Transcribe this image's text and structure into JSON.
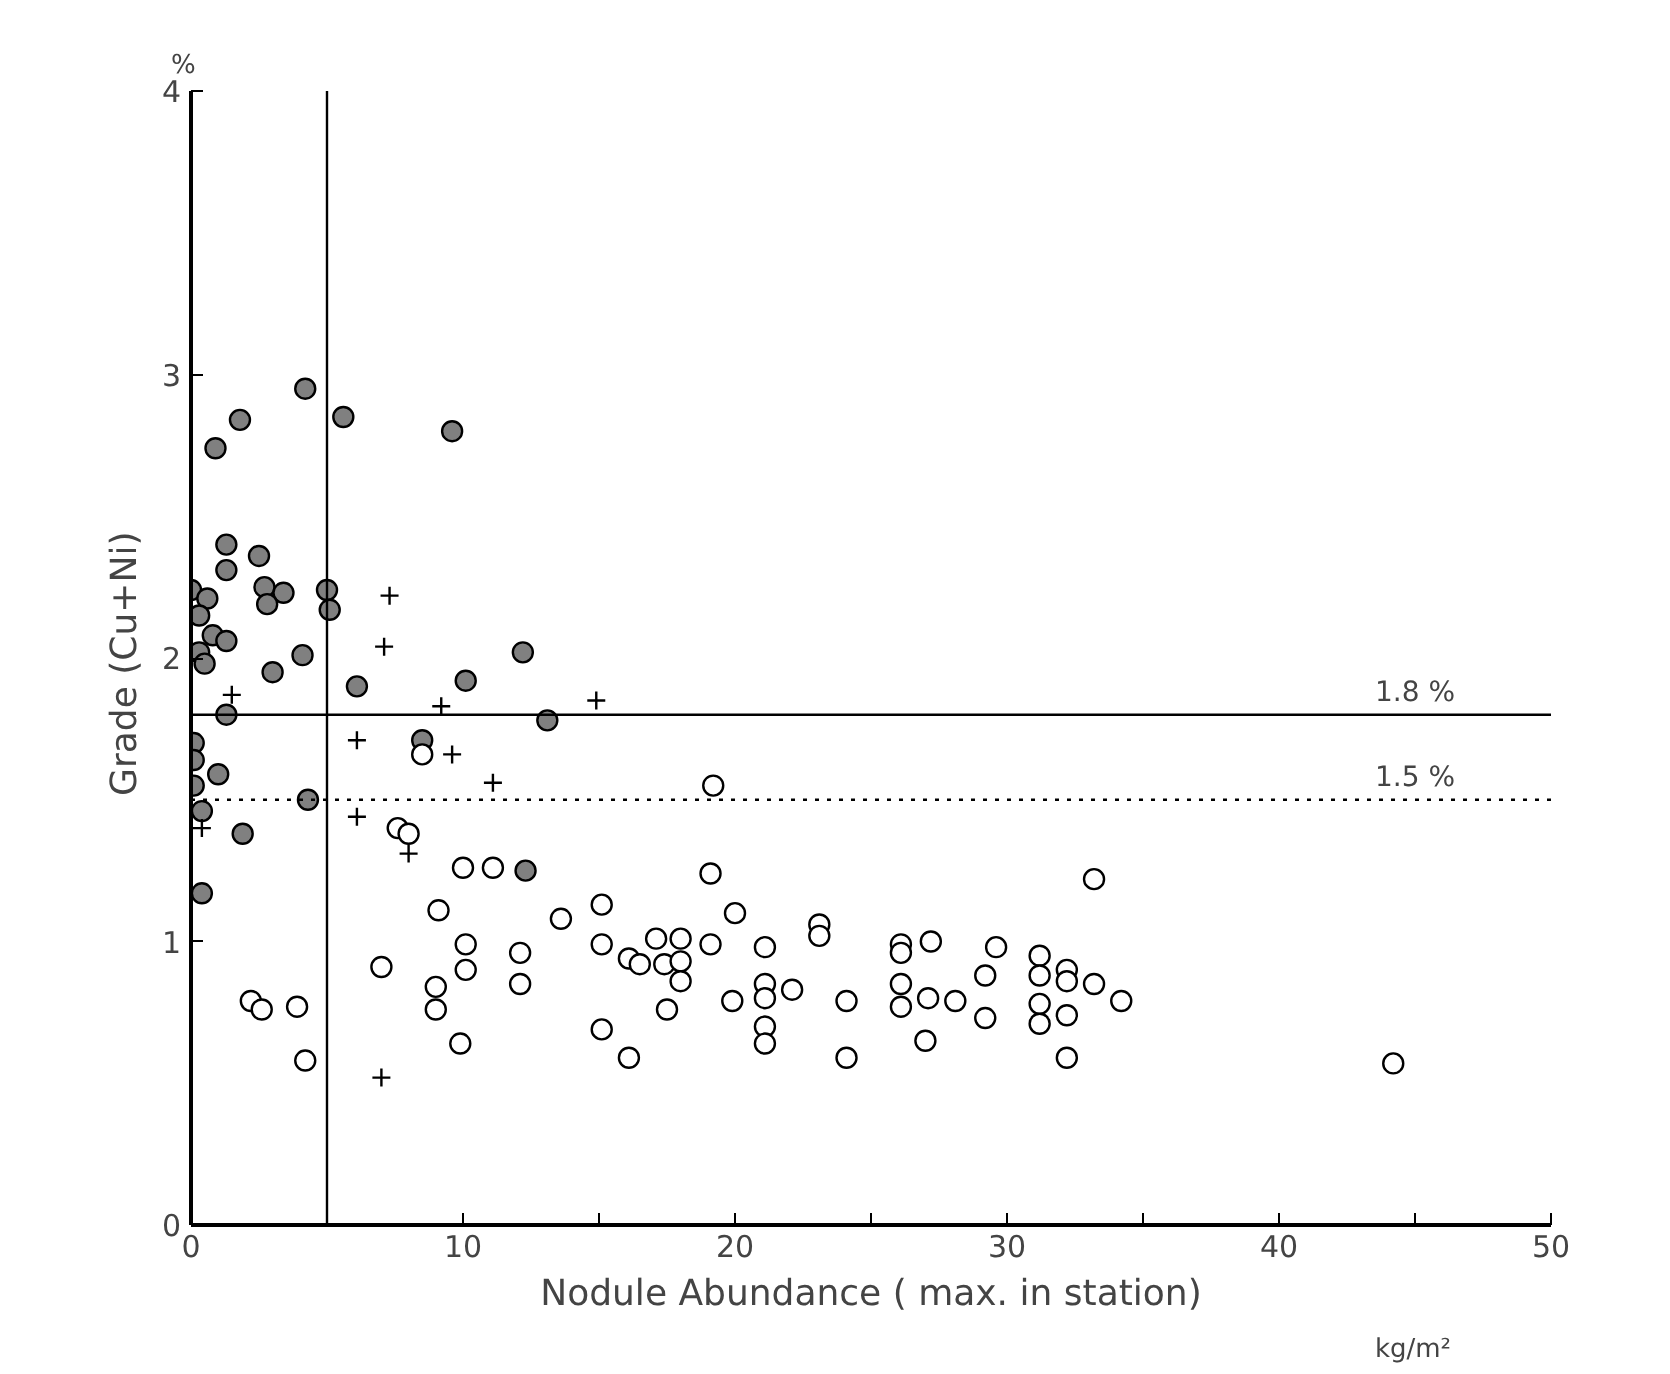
{
  "chart_data": {
    "type": "scatter",
    "xlabel": "Nodule Abundance ( max. in station)",
    "ylabel": "Grade  (Cu+Ni)",
    "annotations": [
      "%",
      "kg/m²"
    ],
    "xlim": [
      0,
      50
    ],
    "ylim": [
      0,
      4
    ],
    "xticks": [
      0,
      {
        "value": 5,
        "label": null
      },
      10,
      {
        "value": 15,
        "label": null
      },
      20,
      {
        "value": 25,
        "label": null
      },
      30,
      {
        "value": 35,
        "label": null
      },
      40,
      {
        "value": 45,
        "label": null
      },
      50
    ],
    "yticks": [
      0,
      1,
      2,
      3,
      4
    ],
    "grid": false,
    "ref_lines": [
      {
        "axis": "x",
        "value": 5
      },
      {
        "axis": "y",
        "value": 1.8,
        "label": "1.8 %",
        "line_style": "solid"
      },
      {
        "axis": "y",
        "value": 1.5,
        "label": "1.5 %",
        "line_style": "dotted"
      }
    ],
    "series": [
      {
        "color": "#808080",
        "marker": "circle",
        "x": [
          4.2,
          1.8,
          0.9,
          5.6,
          9.6,
          1.3,
          2.5,
          1.3,
          0.0,
          0.6,
          2.7,
          3.4,
          2.8,
          5.0,
          5.1,
          0.3,
          0.8,
          1.3,
          0.3,
          0.5,
          4.1,
          3.0,
          6.1,
          10.1,
          12.2,
          1.3,
          13.1,
          0.1,
          8.5,
          0.1,
          1.0,
          0.1,
          4.3,
          0.4,
          1.9,
          12.3,
          0.4
        ],
        "values": [
          2.95,
          2.84,
          2.74,
          2.85,
          2.8,
          2.4,
          2.36,
          2.31,
          2.24,
          2.21,
          2.25,
          2.23,
          2.19,
          2.24,
          2.17,
          2.15,
          2.08,
          2.06,
          2.02,
          1.98,
          2.01,
          1.95,
          1.9,
          1.92,
          2.02,
          1.8,
          1.78,
          1.7,
          1.71,
          1.64,
          1.59,
          1.55,
          1.5,
          1.46,
          1.38,
          1.25,
          1.17
        ]
      },
      {
        "color": "#000000",
        "marker": "cross",
        "x": [
          7.3,
          7.1,
          1.5,
          9.2,
          14.9,
          6.1,
          9.6,
          11.1,
          6.1,
          0.4,
          8.0,
          7.0
        ],
        "values": [
          2.22,
          2.04,
          1.87,
          1.83,
          1.85,
          1.71,
          1.66,
          1.56,
          1.44,
          1.4,
          1.31,
          0.52
        ]
      },
      {
        "color": "#ffffff",
        "marker": "circle",
        "x": [
          8.5,
          7.6,
          8.0,
          10.0,
          11.1,
          9.1,
          13.6,
          15.1,
          10.1,
          12.1,
          15.1,
          16.1,
          7.0,
          10.1,
          12.1,
          9.0,
          9.0,
          15.1,
          9.9,
          16.1,
          2.2,
          2.6,
          3.9,
          4.2,
          19.2,
          19.1,
          20.0,
          17.1,
          18.0,
          19.1,
          16.5,
          17.4,
          18.0,
          18.0,
          17.5,
          21.1,
          21.1,
          21.1,
          22.1,
          19.9,
          21.1,
          21.1,
          23.1,
          23.1,
          24.1,
          24.1,
          26.1,
          26.1,
          27.2,
          26.1,
          26.1,
          27.1,
          28.1,
          27.0,
          29.2,
          29.6,
          29.2,
          31.2,
          31.2,
          31.2,
          31.2,
          32.2,
          32.2,
          32.2,
          32.2,
          33.2,
          33.2,
          34.2,
          44.2
        ],
        "values": [
          1.66,
          1.4,
          1.38,
          1.26,
          1.26,
          1.11,
          1.08,
          1.13,
          0.99,
          0.96,
          0.99,
          0.94,
          0.91,
          0.9,
          0.85,
          0.84,
          0.76,
          0.69,
          0.64,
          0.59,
          0.79,
          0.76,
          0.77,
          0.58,
          1.55,
          1.24,
          1.1,
          1.01,
          1.01,
          0.99,
          0.92,
          0.92,
          0.93,
          0.86,
          0.76,
          0.98,
          0.85,
          0.8,
          0.83,
          0.79,
          0.7,
          0.64,
          1.06,
          1.02,
          0.79,
          0.59,
          0.99,
          0.96,
          1.0,
          0.85,
          0.77,
          0.8,
          0.79,
          0.65,
          0.88,
          0.98,
          0.73,
          0.95,
          0.88,
          0.78,
          0.71,
          0.9,
          0.86,
          0.74,
          0.59,
          1.22,
          0.85,
          0.79,
          0.57
        ]
      }
    ]
  }
}
